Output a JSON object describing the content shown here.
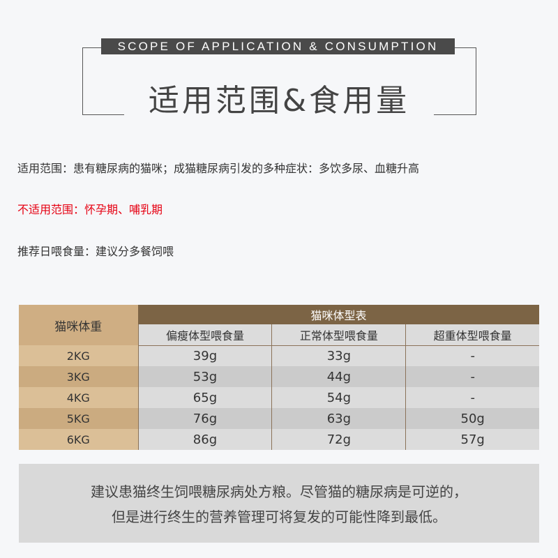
{
  "header": {
    "subtitle_en": "SCOPE OF APPLICATION & CONSUMPTION",
    "title": "适用范围&食用量"
  },
  "info": {
    "suitable": "适用范围：患有糖尿病的猫咪；成猫糖尿病引发的多种症状：多饮多尿、血糖升高",
    "unsuitable": "不适用范围：怀孕期、哺乳期",
    "daily": "推荐日喂食量：建议分多餐饲喂"
  },
  "table": {
    "weight_header": "猫咪体重",
    "group_header": "猫咪体型表",
    "columns": [
      "偏瘦体型喂食量",
      "正常体型喂食量",
      "超重体型喂食量"
    ],
    "rows": [
      {
        "weight": "2KG",
        "values": [
          "39g",
          "33g",
          "-"
        ]
      },
      {
        "weight": "3KG",
        "values": [
          "53g",
          "44g",
          "-"
        ]
      },
      {
        "weight": "4KG",
        "values": [
          "65g",
          "54g",
          "-"
        ]
      },
      {
        "weight": "5KG",
        "values": [
          "76g",
          "63g",
          "50g"
        ]
      },
      {
        "weight": "6KG",
        "values": [
          "86g",
          "72g",
          "57g"
        ]
      }
    ]
  },
  "note": {
    "line1": "建议患猫终生饲喂糖尿病处方粮。尽管猫的糖尿病是可逆的，",
    "line2": "但是进行终生的营养管理可将复发的可能性降到最低。"
  },
  "colors": {
    "header_brown": "#7c6445",
    "weight_tan": "#cfae83",
    "unsuitable_red": "#e60012"
  }
}
